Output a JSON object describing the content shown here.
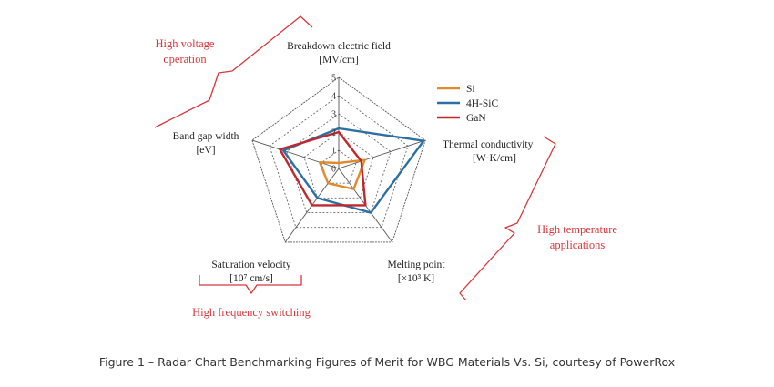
{
  "chart_data": {
    "type": "radar",
    "axes": [
      {
        "label": "Breakdown electric field",
        "unit": "[MV/cm]"
      },
      {
        "label": "Thermal conductivity",
        "unit": "[W·K/cm]"
      },
      {
        "label": "Melting point",
        "unit": "[×10³ K]"
      },
      {
        "label": "Saturation velocity",
        "unit": "[10⁷ cm/s]"
      },
      {
        "label": "Band gap width",
        "unit": "[eV]"
      }
    ],
    "tick_labels": [
      "0",
      "1",
      "2",
      "3",
      "4",
      "5"
    ],
    "range": [
      0,
      5
    ],
    "series": [
      {
        "name": "Si",
        "color": "#e08a2c",
        "values": [
          0.3,
          1.5,
          1.4,
          1.0,
          1.1
        ]
      },
      {
        "name": "4H-SiC",
        "color": "#2a70a3",
        "values": [
          2.2,
          4.9,
          3.0,
          2.0,
          3.2
        ]
      },
      {
        "name": "GaN",
        "color": "#c0282e",
        "values": [
          2.0,
          1.3,
          2.5,
          2.5,
          3.4
        ]
      }
    ],
    "annotations": [
      {
        "text": "High voltage operation",
        "lines": [
          "High voltage",
          "operation"
        ],
        "color": "#d8373b"
      },
      {
        "text": "High temperature applications",
        "lines": [
          "High temperature",
          "applications"
        ],
        "color": "#d8373b"
      },
      {
        "text": "High frequency switching",
        "lines": [
          "High frequency switching"
        ],
        "color": "#d8373b"
      }
    ],
    "legend_position": "top-right"
  },
  "caption": "Figure 1 – Radar Chart Benchmarking Figures of Merit for WBG Materials Vs. Si, courtesy of PowerRox"
}
